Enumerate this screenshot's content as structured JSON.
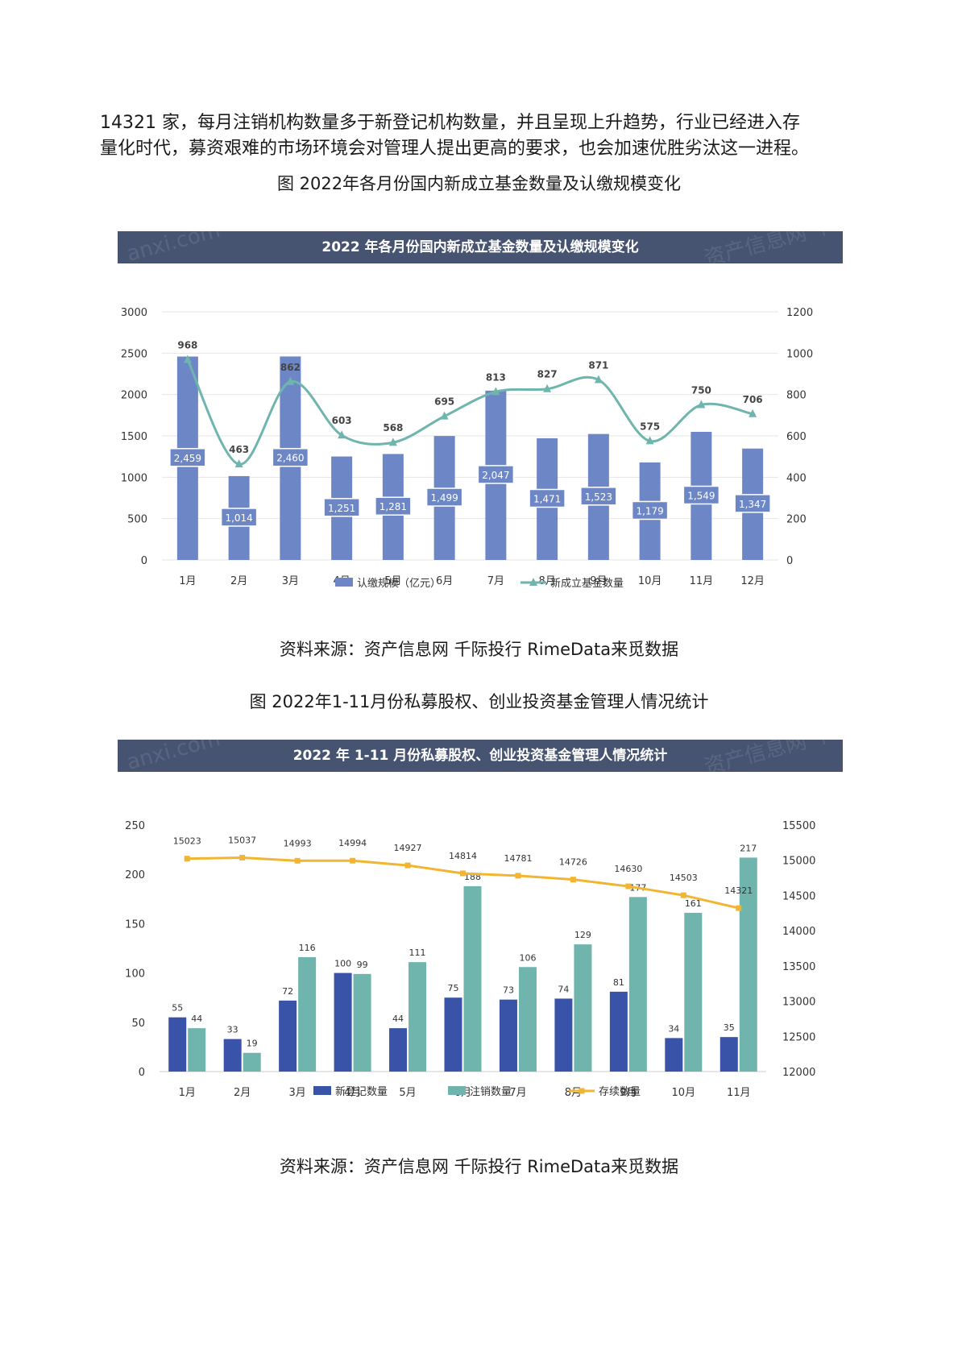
{
  "intro_line1": "14321 家，每月注销机构数量多于新登记机构数量，并且呈现上升趋势，行业已经进入存",
  "intro_line2": "量化时代，募资艰难的市场环境会对管理人提出更高的要求，也会加速优胜劣汰这一进程。",
  "caption1": "图 2022年各月份国内新成立基金数量及认缴规模变化",
  "source1": "资料来源：资产信息网 千际投行 RimeData来觅数据",
  "caption2": "图 2022年1-11月份私募股权、创业投资基金管理人情况统计",
  "source2": "资料来源：资产信息网 千际投行 RimeData来觅数据",
  "watermark_left": "anxi.com",
  "watermark_right": "资产信息网 千",
  "colors": {
    "header": "#475471",
    "bar1": "#6d87c6",
    "line1": "#6fb5ad",
    "bar_blue": "#3853a8",
    "bar_teal": "#6fb5ad",
    "line_orange": "#f2b531"
  },
  "chart_data": [
    {
      "type": "bar",
      "title": "2022 年各月份国内新成立基金数量及认缴规模变化",
      "categories": [
        "1月",
        "2月",
        "3月",
        "4月",
        "5月",
        "6月",
        "7月",
        "8月",
        "9月",
        "10月",
        "11月",
        "12月"
      ],
      "series": [
        {
          "name": "认缴规模（亿元）",
          "type": "bar",
          "axis": "left",
          "values": [
            2459,
            1014,
            2460,
            1251,
            1281,
            1499,
            2047,
            1471,
            1523,
            1179,
            1549,
            1347
          ],
          "labels": [
            "2,459",
            "1,014",
            "2,460",
            "1,251",
            "1,281",
            "1,499",
            "2,047",
            "1,471",
            "1,523",
            "1,179",
            "1,549",
            "1,347"
          ]
        },
        {
          "name": "新成立基金数量",
          "type": "line",
          "axis": "right",
          "values": [
            968,
            463,
            862,
            603,
            568,
            695,
            813,
            827,
            871,
            575,
            750,
            706
          ]
        }
      ],
      "left_axis": {
        "min": 0,
        "max": 3000,
        "ticks": [
          0,
          500,
          1000,
          1500,
          2000,
          2500,
          3000
        ]
      },
      "right_axis": {
        "min": 0,
        "max": 1200,
        "ticks": [
          0,
          200,
          400,
          600,
          800,
          1000,
          1200
        ]
      },
      "legend": "bottom"
    },
    {
      "type": "bar",
      "title": "2022 年 1-11 月份私募股权、创业投资基金管理人情况统计",
      "categories": [
        "1月",
        "2月",
        "3月",
        "4月",
        "5月",
        "6月",
        "7月",
        "8月",
        "9月",
        "10月",
        "11月"
      ],
      "series": [
        {
          "name": "新登记数量",
          "type": "bar",
          "axis": "left",
          "values": [
            55,
            33,
            72,
            100,
            44,
            75,
            73,
            74,
            81,
            34,
            35
          ]
        },
        {
          "name": "注销数量",
          "type": "bar",
          "axis": "left",
          "values": [
            44,
            19,
            116,
            99,
            111,
            188,
            106,
            129,
            177,
            161,
            217
          ]
        },
        {
          "name": "存续数量",
          "type": "line",
          "axis": "right",
          "values": [
            15023,
            15037,
            14993,
            14994,
            14927,
            14814,
            14781,
            14726,
            14630,
            14503,
            14321
          ]
        }
      ],
      "left_axis": {
        "min": 0,
        "max": 250,
        "ticks": [
          0,
          50,
          100,
          150,
          200,
          250
        ]
      },
      "right_axis": {
        "min": 12000,
        "max": 15500,
        "ticks": [
          12000,
          12500,
          13000,
          13500,
          14000,
          14500,
          15000,
          15500
        ]
      },
      "legend": "bottom"
    }
  ]
}
